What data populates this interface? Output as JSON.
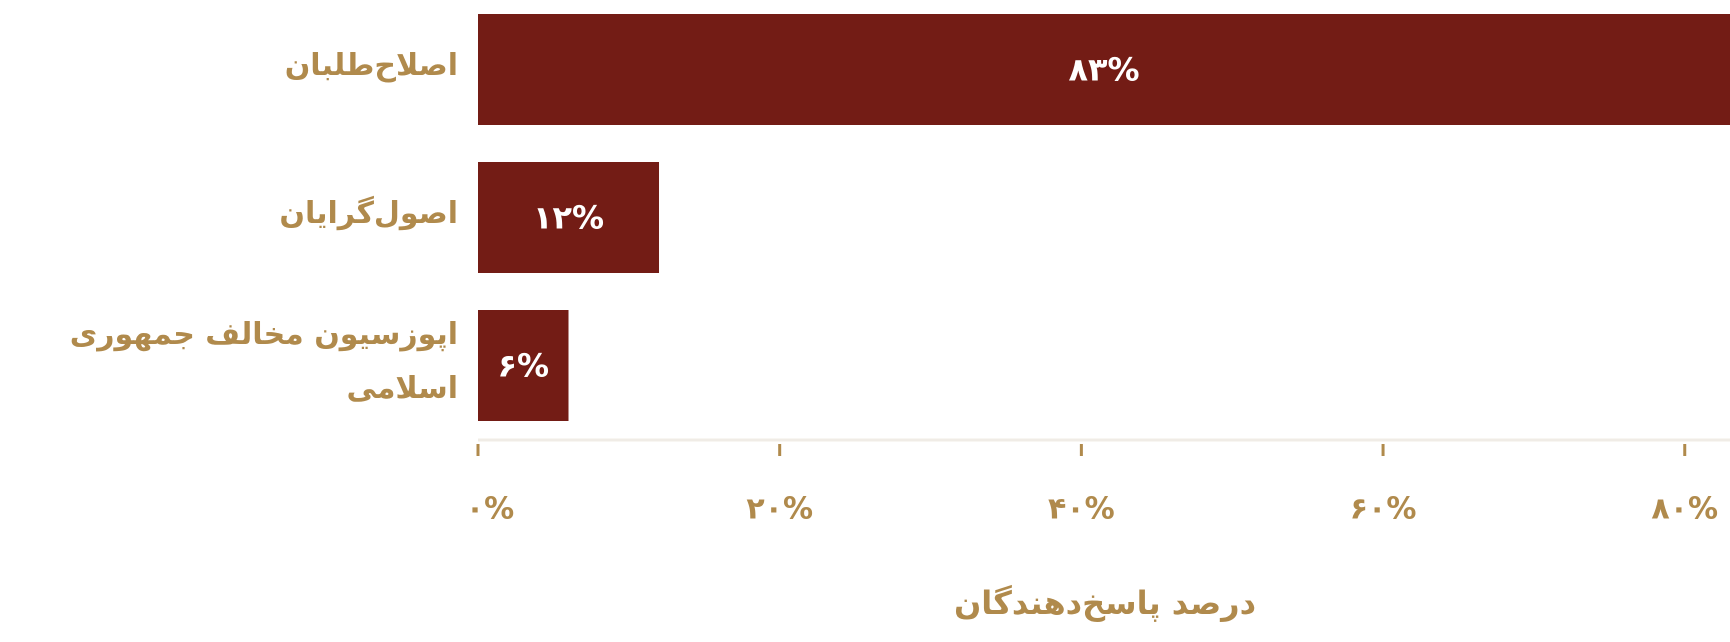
{
  "chart_data": {
    "type": "bar",
    "orientation": "horizontal",
    "categories": [
      "اصلاح‌طلبان",
      "اصول‌گرایان",
      "اپوزسیون مخالف جمهوری اسلامی"
    ],
    "values": [
      83,
      12,
      6
    ],
    "value_labels": [
      "۸۳%",
      "۱۲%",
      "۶%"
    ],
    "color": "#731c15",
    "xlabel": "درصد پاسخ‌دهندگان",
    "xlim": [
      0,
      83
    ],
    "xticks": [
      {
        "value": 0,
        "label": "۰%"
      },
      {
        "value": 20,
        "label": "۲۰%"
      },
      {
        "value": 40,
        "label": "۴۰%"
      },
      {
        "value": 60,
        "label": "۶۰%"
      },
      {
        "value": 80,
        "label": "۸۰%"
      }
    ]
  }
}
